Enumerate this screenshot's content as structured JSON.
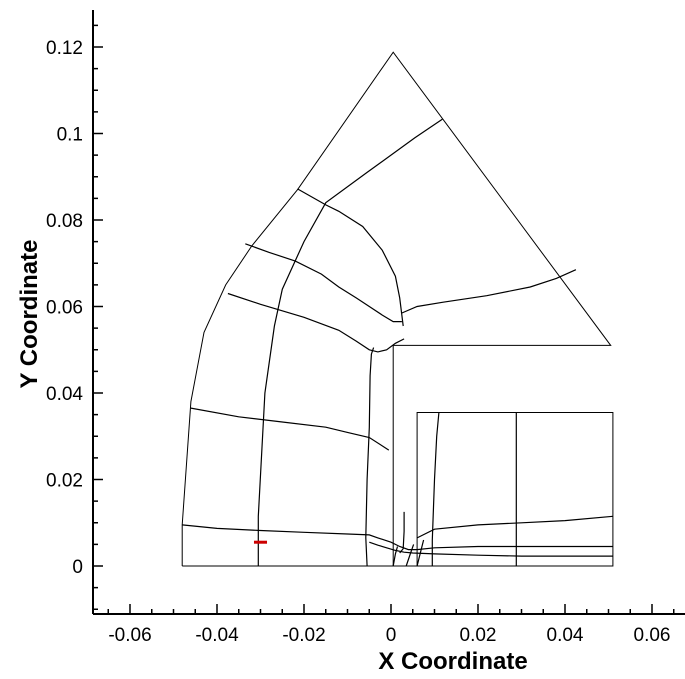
{
  "chart_data": {
    "type": "line",
    "title": "",
    "xlabel": "X Coordinate",
    "ylabel": "Y Coordinate",
    "xlim": [
      -0.07,
      0.067
    ],
    "ylim": [
      -0.01,
      0.128
    ],
    "x_ticks": [
      -0.06,
      -0.04,
      -0.02,
      0,
      0.02,
      0.04,
      0.06
    ],
    "x_tick_labels": [
      "-0.06",
      "-0.04",
      "-0.02",
      "0",
      "0.02",
      "0.04",
      "0.06"
    ],
    "y_ticks": [
      0,
      0.02,
      0.04,
      0.06,
      0.08,
      0.1,
      0.12
    ],
    "y_tick_labels": [
      "0",
      "0.02",
      "0.04",
      "0.06",
      "0.08",
      "0.1",
      "0.12"
    ],
    "x_minor_step": 0.005,
    "y_minor_step": 0.005,
    "grid": false,
    "marker_color": "#cc0000",
    "series": [
      {
        "id": "outer-boundary",
        "x": [
          -0.048,
          -0.048,
          -0.046,
          -0.043,
          -0.038,
          -0.032,
          -0.0215,
          0.0005,
          0.0505,
          0.0025,
          0.0025,
          0.0005,
          0.0005,
          0.006,
          0.006,
          0.051,
          0.051,
          -0.048
        ],
        "y": [
          0.0,
          0.0095,
          0.038,
          0.054,
          0.065,
          0.074,
          0.087,
          0.1188,
          0.051,
          0.051,
          0.051,
          0.051,
          0.0,
          0.0,
          0.0355,
          0.0355,
          0.0,
          0.0
        ]
      },
      {
        "id": "grid-line-1",
        "x": [
          -0.048,
          -0.04,
          -0.03,
          -0.02,
          -0.01,
          -0.005,
          -0.003,
          0.0,
          0.002,
          0.004,
          0.006,
          0.01,
          0.02,
          0.03,
          0.04,
          0.051
        ],
        "y": [
          0.0095,
          0.0087,
          0.0082,
          0.0078,
          0.0074,
          0.0072,
          0.0065,
          0.0055,
          0.0045,
          0.0038,
          0.0038,
          0.0042,
          0.0045,
          0.0045,
          0.0045,
          0.0045
        ]
      },
      {
        "id": "grid-line-2",
        "x": [
          -0.046,
          -0.035,
          -0.025,
          -0.015,
          -0.01,
          -0.005,
          -0.0005
        ],
        "y": [
          0.0365,
          0.0345,
          0.0333,
          0.0321,
          0.0309,
          0.0297,
          0.0268
        ]
      },
      {
        "id": "grid-line-3",
        "x": [
          -0.0375,
          -0.03,
          -0.02,
          -0.012,
          -0.008,
          -0.005,
          -0.003,
          -0.001,
          0.001,
          0.003
        ],
        "y": [
          0.063,
          0.0605,
          0.0575,
          0.0545,
          0.052,
          0.05,
          0.0495,
          0.05,
          0.0515,
          0.0525
        ]
      },
      {
        "id": "grid-line-4",
        "x": [
          -0.0335,
          -0.028,
          -0.022,
          -0.016,
          -0.012,
          -0.008,
          -0.005,
          -0.002,
          0.0005,
          0.0025
        ],
        "y": [
          0.0745,
          0.0725,
          0.0705,
          0.0675,
          0.0645,
          0.062,
          0.06,
          0.058,
          0.0565,
          0.0565
        ]
      },
      {
        "id": "grid-line-5",
        "x": [
          -0.0215,
          -0.015,
          -0.012,
          -0.0065,
          -0.002,
          0.001,
          0.002,
          0.0028
        ],
        "y": [
          0.0872,
          0.0835,
          0.082,
          0.0785,
          0.073,
          0.067,
          0.062,
          0.0555
        ]
      },
      {
        "id": "grid-line-6",
        "x": [
          0.0025,
          0.006,
          0.012,
          0.022,
          0.032,
          0.038,
          0.0425
        ],
        "y": [
          0.0585,
          0.06,
          0.061,
          0.0625,
          0.0645,
          0.0665,
          0.0685
        ]
      },
      {
        "id": "grid-line-7",
        "x": [
          -0.0305,
          -0.0305,
          -0.029,
          -0.0268,
          -0.025,
          -0.02,
          -0.015,
          -0.0055,
          0.0055,
          0.0118
        ],
        "y": [
          0.0,
          0.0115,
          0.04,
          0.0555,
          0.064,
          0.075,
          0.084,
          0.091,
          0.099,
          0.1033
        ]
      },
      {
        "id": "grid-line-8",
        "x": [
          -0.0055,
          -0.0058,
          -0.0055,
          -0.005,
          -0.0048,
          -0.0045,
          -0.004
        ],
        "y": [
          0.0,
          0.0065,
          0.02,
          0.032,
          0.044,
          0.049,
          0.0505
        ]
      },
      {
        "id": "grid-line-9",
        "x": [
          0.0095,
          0.0095,
          0.01,
          0.0105,
          0.011
        ],
        "y": [
          0.0,
          0.006,
          0.02,
          0.03,
          0.0355
        ]
      },
      {
        "id": "grid-line-10",
        "x": [
          0.0288,
          0.0288,
          0.0288
        ],
        "y": [
          0.0,
          0.018,
          0.0355
        ]
      },
      {
        "id": "grid-line-11",
        "x": [
          0.006,
          0.01,
          0.02,
          0.03,
          0.04,
          0.051
        ],
        "y": [
          0.0065,
          0.0085,
          0.0095,
          0.01,
          0.0105,
          0.0115
        ]
      },
      {
        "id": "grid-line-12",
        "x": [
          0.002,
          0.0028,
          0.003,
          0.003
        ],
        "y": [
          0.003,
          0.004,
          0.008,
          0.0125
        ]
      },
      {
        "id": "grid-line-13",
        "x": [
          0.0035,
          0.0045,
          0.0052
        ],
        "y": [
          0.0,
          0.003,
          0.005
        ]
      },
      {
        "id": "grid-line-14",
        "x": [
          0.0005,
          0.001,
          0.0015
        ],
        "y": [
          0.0,
          0.0028,
          0.0045
        ]
      },
      {
        "id": "grid-line-15",
        "x": [
          0.006,
          0.007,
          0.0075
        ],
        "y": [
          0.0,
          0.004,
          0.006
        ]
      },
      {
        "id": "grid-line-16",
        "x": [
          -0.005,
          -0.003,
          -0.001,
          0.001,
          0.003,
          0.005,
          0.01,
          0.02,
          0.03,
          0.04,
          0.051
        ],
        "y": [
          0.0055,
          0.0048,
          0.0042,
          0.0036,
          0.0032,
          0.003,
          0.0028,
          0.0025,
          0.0023,
          0.0023,
          0.0023
        ]
      }
    ],
    "highlight_marker": {
      "x": [
        -0.0315,
        -0.0285
      ],
      "y": [
        0.0055,
        0.0055
      ]
    }
  }
}
